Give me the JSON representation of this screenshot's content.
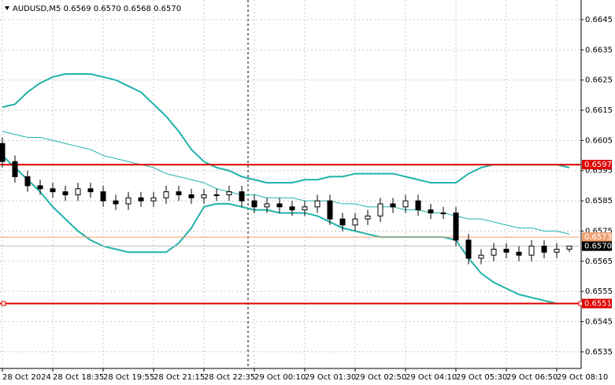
{
  "chart_data": {
    "type": "candlestick",
    "title": "AUDUSD,M5  0.6569 0.6570 0.6568 0.6570",
    "categories": [
      "28 Oct 2024",
      null,
      null,
      null,
      "28 Oct 18:35",
      null,
      null,
      null,
      "28 Oct 19:55",
      null,
      null,
      null,
      "28 Oct 21:15",
      null,
      null,
      null,
      "28 Oct 22:35",
      null,
      null,
      null,
      "29 Oct 00:10",
      null,
      null,
      null,
      "29 Oct 01:30",
      null,
      null,
      null,
      "29 Oct 02:50",
      null,
      null,
      null,
      "29 Oct 04:10",
      null,
      null,
      null,
      "29 Oct 05:30",
      null,
      null,
      null,
      "29 Oct 06:50",
      null,
      null,
      null,
      "29 Oct 08:10",
      null
    ],
    "open": [
      0.6604,
      0.6598,
      0.6593,
      0.659,
      0.6589,
      0.6588,
      0.6587,
      0.6589,
      0.6588,
      0.6585,
      0.6584,
      0.6586,
      0.6585,
      0.6586,
      0.6588,
      0.6587,
      0.6586,
      0.6587,
      0.6587,
      0.6588,
      0.6585,
      0.6583,
      0.6584,
      0.6583,
      0.6582,
      0.6583,
      0.6585,
      0.6579,
      0.6577,
      0.6579,
      0.658,
      0.6584,
      0.6583,
      0.6585,
      0.6582,
      0.6581,
      0.6581,
      0.6572,
      0.6566,
      0.6567,
      0.6569,
      0.6568,
      0.6567,
      0.657,
      0.6568,
      0.6569
    ],
    "high": [
      0.6606,
      0.66,
      0.6595,
      0.6592,
      0.6591,
      0.659,
      0.6591,
      0.6591,
      0.659,
      0.6587,
      0.6588,
      0.6588,
      0.6588,
      0.659,
      0.659,
      0.6589,
      0.6589,
      0.6589,
      0.659,
      0.659,
      0.6587,
      0.6586,
      0.6586,
      0.6585,
      0.6585,
      0.6587,
      0.6587,
      0.6581,
      0.6581,
      0.6582,
      0.6586,
      0.6586,
      0.6587,
      0.6587,
      0.6584,
      0.6583,
      0.6583,
      0.6574,
      0.6569,
      0.6571,
      0.6571,
      0.657,
      0.6572,
      0.6572,
      0.6571,
      0.657
    ],
    "low": [
      0.6596,
      0.6591,
      0.6588,
      0.6587,
      0.6586,
      0.6585,
      0.6585,
      0.6586,
      0.6583,
      0.6582,
      0.6582,
      0.6583,
      0.6583,
      0.6584,
      0.6585,
      0.6584,
      0.6584,
      0.6585,
      0.6585,
      0.6583,
      0.6581,
      0.6581,
      0.6581,
      0.658,
      0.658,
      0.6581,
      0.6577,
      0.6575,
      0.6575,
      0.6577,
      0.6578,
      0.6581,
      0.6581,
      0.658,
      0.6579,
      0.6579,
      0.657,
      0.6564,
      0.6564,
      0.6565,
      0.6566,
      0.6565,
      0.6565,
      0.6566,
      0.6566,
      0.6568
    ],
    "close": [
      0.6598,
      0.6593,
      0.659,
      0.6589,
      0.6588,
      0.6587,
      0.6589,
      0.6588,
      0.6585,
      0.6584,
      0.6586,
      0.6585,
      0.6586,
      0.6588,
      0.6587,
      0.6586,
      0.6587,
      0.6587,
      0.6588,
      0.6585,
      0.6583,
      0.6584,
      0.6583,
      0.6582,
      0.6583,
      0.6585,
      0.6579,
      0.6577,
      0.6579,
      0.658,
      0.6584,
      0.6583,
      0.6585,
      0.6582,
      0.6581,
      0.6581,
      0.6572,
      0.6566,
      0.6567,
      0.6569,
      0.6568,
      0.6567,
      0.657,
      0.6568,
      0.6569,
      0.657
    ],
    "series": [
      {
        "color": "#20b2aa",
        "values": [
          0.6616,
          0.6617,
          0.6621,
          0.6624,
          0.6626,
          0.6627,
          0.6627,
          0.6627,
          0.6626,
          0.6625,
          0.6623,
          0.6621,
          0.6617,
          0.6613,
          0.6608,
          0.6602,
          0.6598,
          0.6596,
          0.6595,
          0.6593,
          0.6592,
          0.6591,
          0.6591,
          0.6591,
          0.6592,
          0.6592,
          0.6593,
          0.6593,
          0.6594,
          0.6594,
          0.6594,
          0.6594,
          0.6593,
          0.6592,
          0.6591,
          0.6591,
          0.6591,
          0.6594,
          0.6596,
          0.6597,
          0.6597,
          0.6597,
          0.6597,
          0.6597,
          0.6597,
          0.6596
        ]
      },
      {
        "color": "#20b2aa",
        "values": [
          0.6608,
          0.6607,
          0.6606,
          0.6606,
          0.6605,
          0.6604,
          0.6603,
          0.6602,
          0.66,
          0.6599,
          0.6598,
          0.6597,
          0.6596,
          0.6594,
          0.6593,
          0.6592,
          0.6591,
          0.6589,
          0.6588,
          0.6587,
          0.6587,
          0.6586,
          0.6586,
          0.6586,
          0.6585,
          0.6585,
          0.6585,
          0.6584,
          0.6584,
          0.6583,
          0.6583,
          0.6583,
          0.6582,
          0.6582,
          0.6581,
          0.6581,
          0.658,
          0.6579,
          0.6579,
          0.6578,
          0.6577,
          0.6576,
          0.6576,
          0.6575,
          0.6575,
          0.6574
        ]
      },
      {
        "color": "#20b2aa",
        "values": [
          0.66,
          0.6596,
          0.6592,
          0.6588,
          0.6583,
          0.6579,
          0.6575,
          0.6572,
          0.657,
          0.6569,
          0.6568,
          0.6568,
          0.6568,
          0.6568,
          0.6571,
          0.6576,
          0.6583,
          0.6584,
          0.6584,
          0.6583,
          0.6582,
          0.6582,
          0.6581,
          0.6581,
          0.6581,
          0.658,
          0.6578,
          0.6576,
          0.6575,
          0.6574,
          0.6573,
          0.6573,
          0.6573,
          0.6573,
          0.6573,
          0.6573,
          0.6572,
          0.6566,
          0.6561,
          0.6558,
          0.6556,
          0.6554,
          0.6553,
          0.6552,
          0.6551,
          0.6551
        ]
      }
    ],
    "levels": [
      {
        "value": 0.6597,
        "color": "#e00000"
      },
      {
        "value": 0.6573,
        "color": "#f0a070"
      },
      {
        "value": 0.657,
        "label": "0.6570",
        "color": "#000000"
      },
      {
        "value": 0.6551,
        "color": "#e00000"
      }
    ],
    "ylim": [
      0.65295,
      0.66515
    ],
    "yticks": [
      0.6645,
      0.6635,
      0.6625,
      0.6615,
      0.6605,
      0.6595,
      0.6585,
      0.6575,
      0.6565,
      0.6555,
      0.6545,
      0.6535
    ],
    "grid": true
  }
}
